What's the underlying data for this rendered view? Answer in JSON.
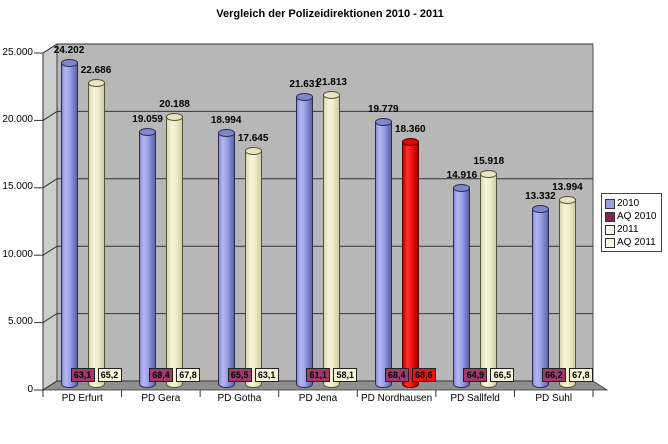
{
  "title": "Vergleich der Polizeidirektionen 2010 - 2011",
  "legend": {
    "items": [
      {
        "label": "2010",
        "color": "#9a9fe2"
      },
      {
        "label": "AQ 2010",
        "color": "#7c2750"
      },
      {
        "label": "2011",
        "color": "#fcfaef"
      },
      {
        "label": "AQ 2011",
        "color": "#fcfaef"
      }
    ]
  },
  "chart_data": {
    "type": "bar",
    "style": "3d-cylinder",
    "title": "Vergleich der Polizeidirektionen 2010 - 2011",
    "categories": [
      "PD Erfurt",
      "PD Gera",
      "PD Gotha",
      "PD Jena",
      "PD Nordhausen",
      "PD Sallfeld",
      "PD Suhl"
    ],
    "series": [
      {
        "name": "2010",
        "color": "#989ee6",
        "values": [
          24202,
          19059,
          18994,
          21631,
          19779,
          14916,
          13332
        ],
        "labels": [
          "24.202",
          "19.059",
          "18.994",
          "21.631",
          "19.779",
          "14.916",
          "13.332"
        ]
      },
      {
        "name": "AQ 2010",
        "color": "#a03a6c",
        "values": [
          63.1,
          68.4,
          65.5,
          61.1,
          68.4,
          64.9,
          66.2
        ],
        "labels": [
          "63,1",
          "68,4",
          "65,5",
          "61,1",
          "68,4",
          "64,9",
          "66,2"
        ]
      },
      {
        "name": "2011",
        "color": "#f0edcc",
        "values": [
          22686,
          20188,
          17645,
          21813,
          18360,
          15918,
          13994
        ],
        "labels": [
          "22.686",
          "20.188",
          "17.645",
          "21.813",
          "18.360",
          "15.918",
          "13.994"
        ]
      },
      {
        "name": "AQ 2011",
        "color": "#f7f4d8",
        "values": [
          65.2,
          67.8,
          63.1,
          58.1,
          68.6,
          66.5,
          67.8
        ],
        "labels": [
          "65,2",
          "67,8",
          "63,1",
          "58,1",
          "68,6",
          "66,5",
          "67,8"
        ]
      }
    ],
    "highlight": {
      "category": "PD Nordhausen",
      "category_index": 4,
      "series": [
        "2011",
        "AQ 2011"
      ],
      "color": "#ee1111"
    },
    "ylim": [
      0,
      25000
    ],
    "yticks": [
      {
        "value": 25000,
        "label": "25.000"
      },
      {
        "value": 20000,
        "label": "20.000"
      },
      {
        "value": 15000,
        "label": "15.000"
      },
      {
        "value": 10000,
        "label": "10.000"
      },
      {
        "value": 5000,
        "label": "5.000"
      },
      {
        "value": 0,
        "label": "0"
      }
    ],
    "grid": true,
    "legend_position": "right",
    "wall_color": "#b7b7b7",
    "side_wall_color": "#cdcdcd",
    "floor_color": "#8f8f8f",
    "gridline_color": "#333333"
  }
}
